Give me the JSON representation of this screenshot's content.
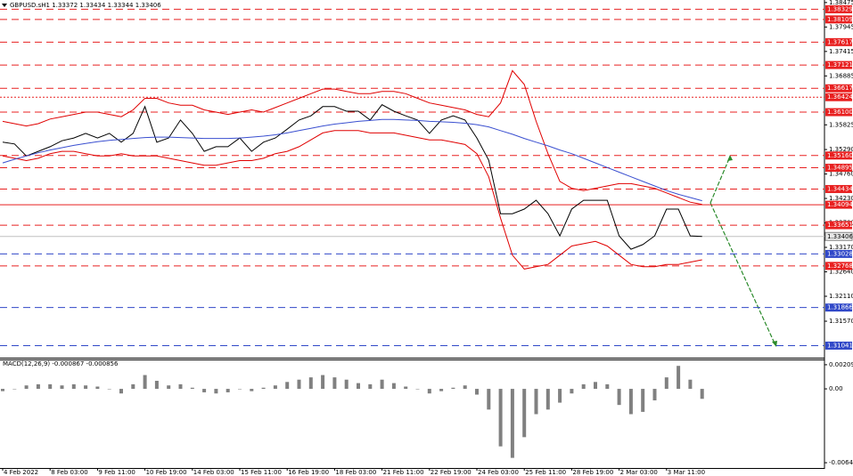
{
  "chart_data": [
    {
      "type": "line",
      "title": "GBPUSD.sH1  1.33372 1.33434 1.33344 1.33406",
      "categories": [
        "4 Feb 2022",
        null,
        null,
        null,
        "8 Feb 03:00",
        null,
        null,
        null,
        "9 Feb 11:00",
        null,
        null,
        null,
        "10 Feb 19:00",
        null,
        null,
        null,
        "14 Feb 03:00",
        null,
        null,
        null,
        "15 Feb 11:00",
        null,
        null,
        null,
        "16 Feb 19:00",
        null,
        null,
        null,
        "18 Feb 03:00",
        null,
        null,
        null,
        "21 Feb 11:00",
        null,
        null,
        null,
        "22 Feb 19:00",
        null,
        null,
        null,
        "24 Feb 03:00",
        null,
        null,
        null,
        "25 Feb 11:00",
        null,
        null,
        null,
        "28 Feb 19:00",
        null,
        null,
        null,
        "2 Mar 03:00",
        null,
        null,
        null,
        "3 Mar 11:00",
        null,
        null,
        null
      ],
      "series": [
        {
          "color": "#000000",
          "values": [
            1.3545,
            1.3541,
            1.3515,
            1.3525,
            1.3535,
            1.3548,
            1.3554,
            1.3564,
            1.3554,
            1.3564,
            1.3545,
            1.3564,
            1.3622,
            1.3545,
            1.3554,
            1.3593,
            1.3564,
            1.3525,
            1.3535,
            1.3535,
            1.3554,
            1.3525,
            1.3545,
            1.3554,
            1.3573,
            1.3593,
            1.3602,
            1.3622,
            1.3622,
            1.3612,
            1.3612,
            1.3593,
            1.3626,
            1.3612,
            1.3602,
            1.3593,
            1.3564,
            1.3593,
            1.3602,
            1.3593,
            1.3554,
            1.3506,
            1.339,
            1.339,
            1.34,
            1.3419,
            1.339,
            1.3342,
            1.34,
            1.3419,
            1.3419,
            1.3419,
            1.3342,
            1.3313,
            1.3323,
            1.3342,
            1.34,
            1.34,
            1.3342,
            1.33406
          ]
        },
        {
          "color": "#e00000",
          "values": [
            1.359,
            1.3585,
            1.358,
            1.3585,
            1.3595,
            1.36,
            1.3605,
            1.361,
            1.361,
            1.3605,
            1.36,
            1.3615,
            1.364,
            1.364,
            1.363,
            1.3625,
            1.3625,
            1.3615,
            1.361,
            1.3605,
            1.361,
            1.3615,
            1.361,
            1.362,
            1.363,
            1.364,
            1.365,
            1.366,
            1.366,
            1.3655,
            1.365,
            1.365,
            1.3655,
            1.3655,
            1.365,
            1.364,
            1.363,
            1.3625,
            1.362,
            1.3615,
            1.3605,
            1.36,
            1.363,
            1.37,
            1.367,
            1.359,
            1.352,
            1.346,
            1.3445,
            1.344,
            1.3445,
            1.345,
            1.3455,
            1.3455,
            1.345,
            1.3445,
            1.3435,
            1.3425,
            1.3415,
            1.341
          ]
        },
        {
          "color": "#e00000",
          "values": [
            1.3515,
            1.351,
            1.3505,
            1.351,
            1.352,
            1.3525,
            1.3525,
            1.352,
            1.3515,
            1.3515,
            1.352,
            1.3515,
            1.3515,
            1.3515,
            1.351,
            1.3505,
            1.35,
            1.3495,
            1.3495,
            1.35,
            1.3505,
            1.3505,
            1.351,
            1.352,
            1.3525,
            1.3535,
            1.355,
            1.3565,
            1.357,
            1.357,
            1.357,
            1.3565,
            1.3565,
            1.3565,
            1.356,
            1.3555,
            1.355,
            1.355,
            1.3545,
            1.354,
            1.352,
            1.347,
            1.338,
            1.33,
            1.327,
            1.3275,
            1.328,
            1.33,
            1.332,
            1.3325,
            1.333,
            1.332,
            1.33,
            1.328,
            1.3275,
            1.3275,
            1.328,
            1.328,
            1.3285,
            1.329
          ]
        },
        {
          "color": "#3a4fd0",
          "values": [
            1.35,
            1.3508,
            1.3515,
            1.3522,
            1.3528,
            1.3533,
            1.3538,
            1.3542,
            1.3546,
            1.3549,
            1.3551,
            1.3553,
            1.3555,
            1.3556,
            1.3556,
            1.3555,
            1.3554,
            1.3553,
            1.3553,
            1.3553,
            1.3554,
            1.3556,
            1.3558,
            1.3561,
            1.3565,
            1.357,
            1.3575,
            1.358,
            1.3584,
            1.3587,
            1.359,
            1.3592,
            1.3594,
            1.3594,
            1.3593,
            1.3592,
            1.359,
            1.3589,
            1.3588,
            1.3586,
            1.3583,
            1.3578,
            1.357,
            1.3562,
            1.3553,
            1.3545,
            1.3537,
            1.3528,
            1.352,
            1.351,
            1.35,
            1.349,
            1.348,
            1.347,
            1.346,
            1.345,
            1.344,
            1.3432,
            1.3425,
            1.3418
          ]
        }
      ],
      "ylim": [
        1.3078,
        1.3853
      ],
      "yticks": [
        1.38475,
        1.37945,
        1.37415,
        1.36885,
        1.35825,
        {
          "value": 1.3529,
          "label": "1.35290"
        },
        {
          "value": 1.3476,
          "label": "1.34760"
        },
        {
          "value": 1.3423,
          "label": "1.34230"
        },
        {
          "value": 1.337,
          "label": "1.33700"
        },
        {
          "value": 1.3317,
          "label": "1.33170"
        },
        {
          "value": 1.3264,
          "label": "1.32640"
        },
        {
          "value": 1.3211,
          "label": "1.32110"
        },
        {
          "value": 1.3157,
          "label": "1.31570"
        }
      ],
      "levels": [
        {
          "value": 1.38329,
          "color": "#e82020",
          "style": "dashed"
        },
        {
          "value": 1.38109,
          "color": "#e82020",
          "style": "dashed"
        },
        {
          "value": 1.37617,
          "color": "#e82020",
          "style": "dashed"
        },
        {
          "value": 1.37121,
          "color": "#e82020",
          "style": "dashed"
        },
        {
          "value": 1.36617,
          "color": "#e82020",
          "style": "dashed"
        },
        {
          "value": 1.36424,
          "color": "#e82020",
          "style": "dotted"
        },
        {
          "value": 1.361,
          "label": "1.36100",
          "color": "#e82020",
          "style": "dashed"
        },
        {
          "value": 1.3516,
          "label": "1.35160",
          "color": "#e82020",
          "style": "dashed"
        },
        {
          "value": 1.34895,
          "color": "#e82020",
          "style": "dashed"
        },
        {
          "value": 1.34434,
          "color": "#e82020",
          "style": "dashed"
        },
        {
          "value": 1.34094,
          "color": "#e82020",
          "style": "solid"
        },
        {
          "value": 1.33651,
          "color": "#e82020",
          "style": "dashed"
        },
        {
          "value": 1.33028,
          "color": "#3048c8",
          "style": "dashed"
        },
        {
          "value": 1.32768,
          "color": "#e82020",
          "style": "dashed"
        },
        {
          "value": 1.31866,
          "color": "#3048c8",
          "style": "dashed"
        },
        {
          "value": 1.31041,
          "color": "#3048c8",
          "style": "dashed"
        }
      ],
      "current_price": 1.33406
    },
    {
      "type": "bar",
      "title": "MACD(12,26,9) -0.000867 -0.000856",
      "values": [
        -0.0002,
        0,
        0.0003,
        0.0004,
        0.0004,
        0.0003,
        0.0004,
        0.0003,
        0.0002,
        0,
        -0.0004,
        0.0004,
        0.0012,
        0.0007,
        0.0003,
        0.0004,
        0.0001,
        -0.0003,
        -0.0004,
        -0.0003,
        0,
        -0.0002,
        0.0001,
        0.0003,
        0.0006,
        0.0008,
        0.001,
        0.0012,
        0.001,
        0.0008,
        0.0005,
        0.0004,
        0.0008,
        0.0005,
        0.0002,
        0,
        -0.0004,
        -0.0002,
        0.0001,
        0.0003,
        -0.0005,
        -0.0018,
        -0.005,
        -0.006,
        -0.0042,
        -0.0022,
        -0.0018,
        -0.0012,
        -0.0004,
        0.0004,
        0.0006,
        0.0004,
        -0.0014,
        -0.0022,
        -0.002,
        -0.001,
        0.001,
        0.002,
        0.0008,
        -0.000867
      ],
      "color": "#808080",
      "ylim": [
        -0.00688,
        0.00248
      ],
      "yticks": [
        0.002098,
        {
          "value": 0,
          "label": "0.00"
        },
        -0.006421
      ]
    }
  ]
}
